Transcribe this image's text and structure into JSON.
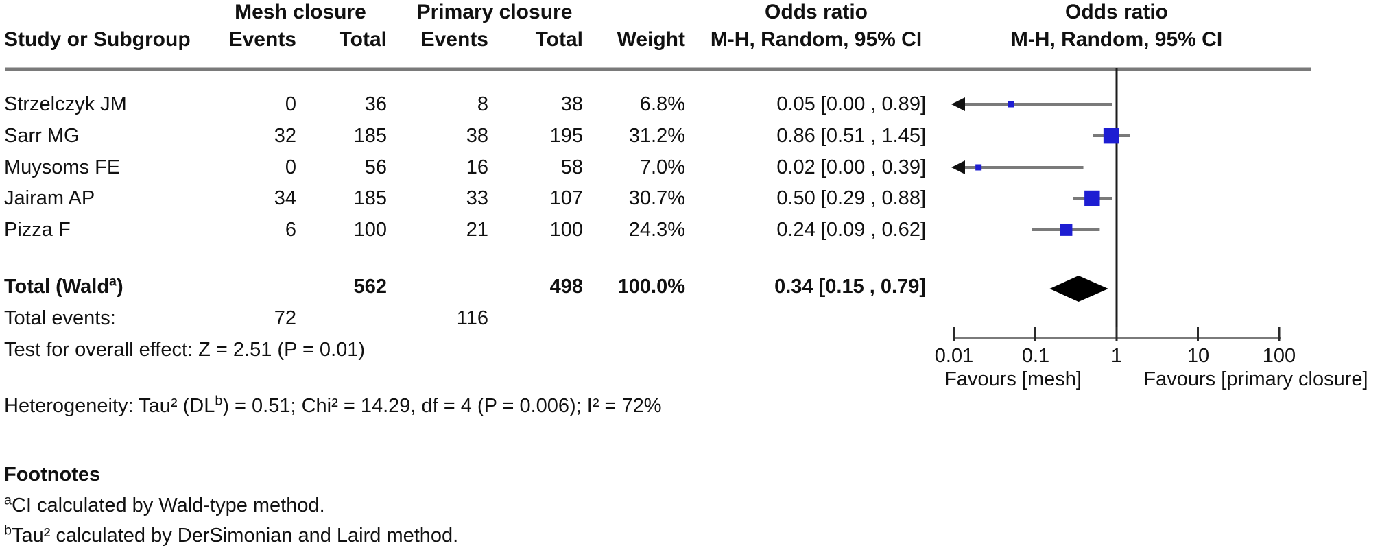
{
  "header": {
    "study_col": "Study or Subgroup",
    "group1": "Mesh closure",
    "group2": "Primary closure",
    "events1": "Events",
    "total1": "Total",
    "events2": "Events",
    "total2": "Total",
    "weight": "Weight",
    "or_text_title": "Odds ratio",
    "or_text_sub": "M-H, Random, 95% CI",
    "or_plot_title": "Odds ratio",
    "or_plot_sub": "M-H, Random, 95% CI"
  },
  "chart_data": {
    "type": "forest",
    "x_scale": "log",
    "effect_measure": "Odds ratio (M-H, Random, 95% CI)",
    "axis_ticks": [
      0.01,
      0.1,
      1,
      10,
      100
    ],
    "tick_labels": [
      "0.01",
      "0.1",
      "1",
      "10",
      "100"
    ],
    "null_line": 1,
    "favours_left": "Favours [mesh]",
    "favours_right": "Favours [primary closure]",
    "marker_color": "#1e1ed2",
    "line_color": "#7a7a7a",
    "studies": [
      {
        "name": "Strzelczyk JM",
        "events1": "0",
        "total1": "36",
        "events2": "8",
        "total2": "38",
        "weight": "6.8%",
        "weight_pct": 6.8,
        "or": 0.05,
        "ci_low": 0.0,
        "ci_high": 0.89,
        "or_label": "0.05 [0.00 , 0.89]",
        "clipped_low": true
      },
      {
        "name": "Sarr MG",
        "events1": "32",
        "total1": "185",
        "events2": "38",
        "total2": "195",
        "weight": "31.2%",
        "weight_pct": 31.2,
        "or": 0.86,
        "ci_low": 0.51,
        "ci_high": 1.45,
        "or_label": "0.86 [0.51 , 1.45]",
        "clipped_low": false
      },
      {
        "name": "Muysoms FE",
        "events1": "0",
        "total1": "56",
        "events2": "16",
        "total2": "58",
        "weight": "7.0%",
        "weight_pct": 7.0,
        "or": 0.02,
        "ci_low": 0.0,
        "ci_high": 0.39,
        "or_label": "0.02 [0.00 , 0.39]",
        "clipped_low": true
      },
      {
        "name": "Jairam AP",
        "events1": "34",
        "total1": "185",
        "events2": "33",
        "total2": "107",
        "weight": "30.7%",
        "weight_pct": 30.7,
        "or": 0.5,
        "ci_low": 0.29,
        "ci_high": 0.88,
        "or_label": "0.50 [0.29 , 0.88]",
        "clipped_low": false
      },
      {
        "name": "Pizza F",
        "events1": "6",
        "total1": "100",
        "events2": "21",
        "total2": "100",
        "weight": "24.3%",
        "weight_pct": 24.3,
        "or": 0.24,
        "ci_low": 0.09,
        "ci_high": 0.62,
        "or_label": "0.24 [0.09 , 0.62]",
        "clipped_low": false
      }
    ],
    "total": {
      "label_pre": "Total (Wald",
      "label_sup": "a",
      "label_post": ")",
      "total1": "562",
      "total2": "498",
      "weight": "100.0%",
      "or": 0.34,
      "ci_low": 0.15,
      "ci_high": 0.79,
      "or_label": "0.34 [0.15 , 0.79]"
    }
  },
  "summary": {
    "total_events_label": "Total events:",
    "total_events1": "72",
    "total_events2": "116",
    "overall_effect": "Test for overall effect: Z = 2.51 (P = 0.01)",
    "heterogeneity_pre": "Heterogeneity: Tau² (DL",
    "heterogeneity_sup": "b",
    "heterogeneity_post": ") = 0.51; Chi² = 14.29, df = 4 (P = 0.006); I² = 72%"
  },
  "footnotes": {
    "title": "Footnotes",
    "a_sup": "a",
    "a_text": "CI calculated by Wald-type method.",
    "b_sup": "b",
    "b_text": "Tau² calculated by DerSimonian and Laird method."
  }
}
